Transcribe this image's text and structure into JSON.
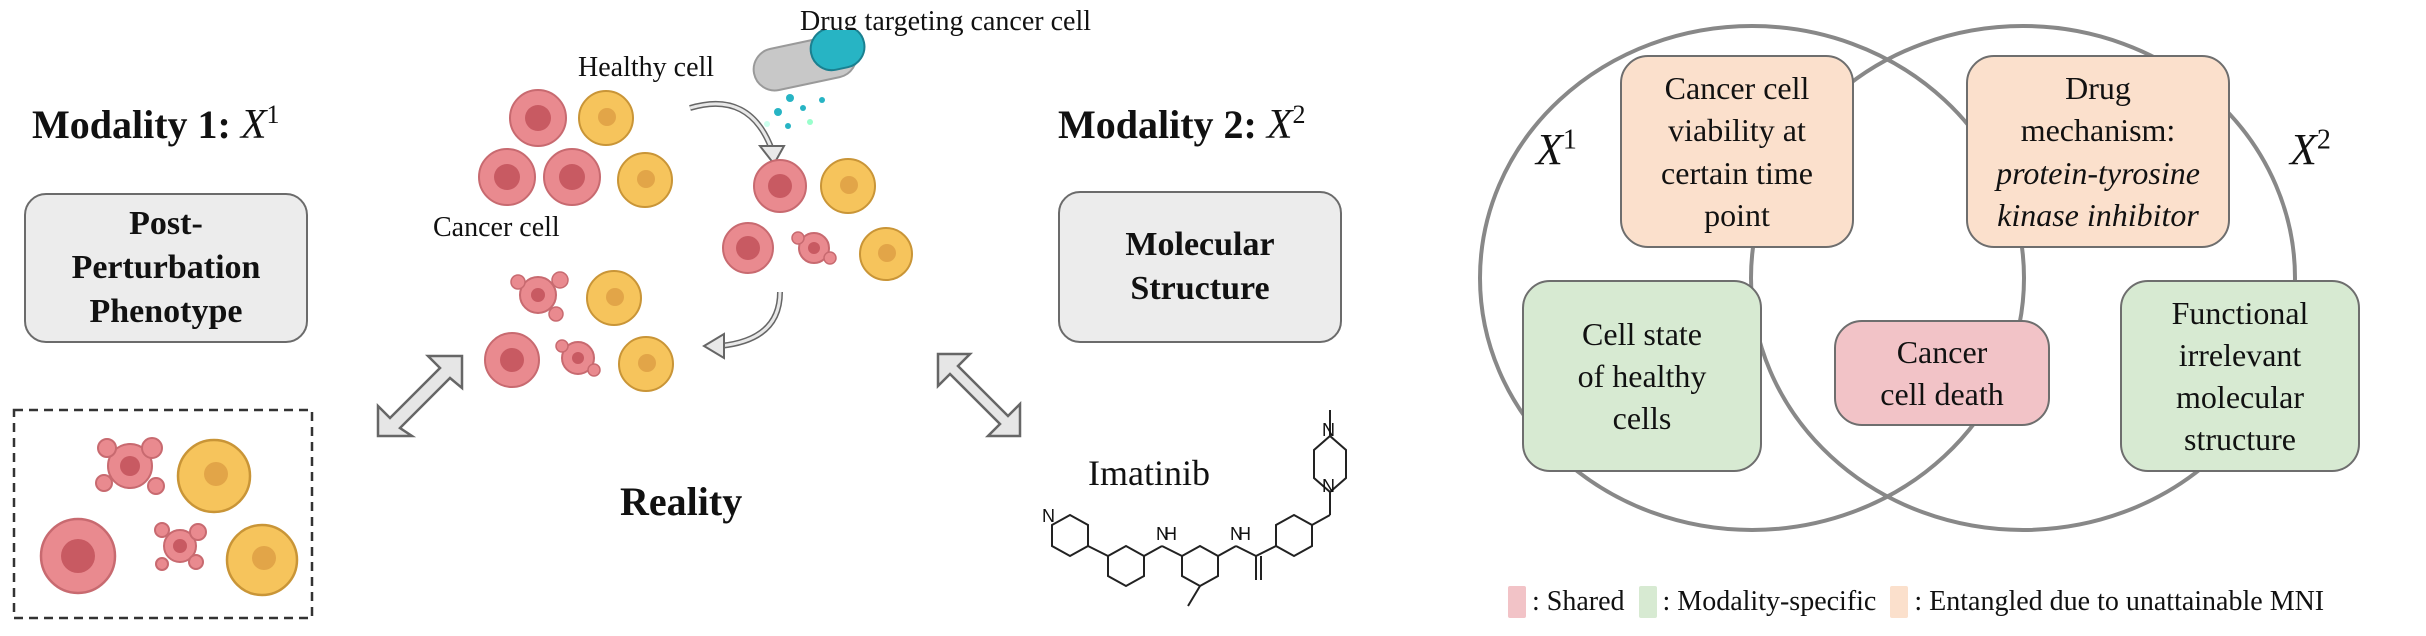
{
  "left": {
    "modality1_title": "Modality 1:",
    "modality1_var": "X",
    "modality1_sup": "1",
    "phenotype_box": [
      "Post-",
      "Perturbation",
      "Phenotype"
    ]
  },
  "center": {
    "drug_label": "Drug targeting cancer cell",
    "healthy_label": "Healthy cell",
    "cancer_label": "Cancer cell",
    "reality_label": "Reality"
  },
  "right": {
    "modality2_title": "Modality 2:",
    "modality2_var": "X",
    "modality2_sup": "2",
    "structure_box": [
      "Molecular",
      "Structure"
    ],
    "molecule_name": "Imatinib",
    "atoms": {
      "n": "N",
      "nh": "H"
    }
  },
  "venn": {
    "x1_var": "X",
    "x1_sup": "1",
    "x2_var": "X",
    "x2_sup": "2",
    "boxes": {
      "viability": [
        "Cancer cell",
        "viability at",
        "certain time",
        "point"
      ],
      "mechanism_line1": "Drug",
      "mechanism_line2": "mechanism:",
      "mechanism_line3": "protein-tyrosine",
      "mechanism_line4": "kinase inhibitor",
      "cell_state": [
        "Cell state",
        "of healthy",
        "cells"
      ],
      "cancer_death": [
        "Cancer",
        "cell death"
      ],
      "functional": [
        "Functional",
        "irrelevant",
        "molecular",
        "structure"
      ]
    }
  },
  "legend": {
    "shared": ": Shared",
    "specific": ": Modality-specific",
    "entangled": ": Entangled due to unattainable MNI"
  },
  "colors": {
    "shared": "#f2c3c7",
    "specific": "#d7ead2",
    "entangled": "#fbe0cc",
    "cancer_cell": "#e98a8f",
    "healthy_cell": "#f6c45c"
  }
}
